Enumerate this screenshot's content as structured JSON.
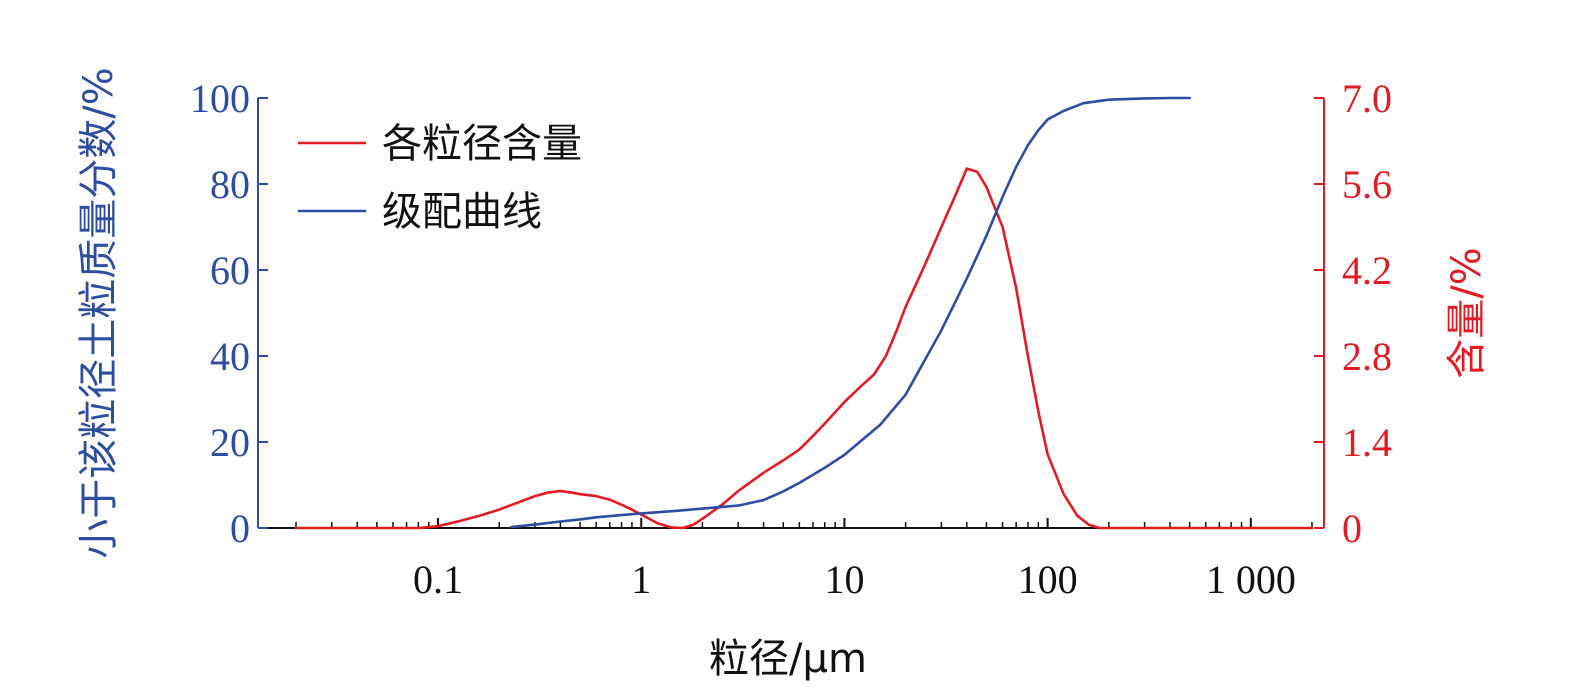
{
  "chart_data": {
    "type": "line",
    "xlabel": "粒径/μm",
    "x_scale": "log",
    "xlim": [
      0.013,
      2000
    ],
    "x_ticks": [
      {
        "value": 0.1,
        "label": "0.1"
      },
      {
        "value": 1,
        "label": "1"
      },
      {
        "value": 10,
        "label": "10"
      },
      {
        "value": 100,
        "label": "100"
      },
      {
        "value": 1000,
        "label": "1 000"
      }
    ],
    "y_left": {
      "label": "小于该粒径土粒质量分数/%",
      "ylim": [
        0,
        100
      ],
      "ticks": [
        "0",
        "20",
        "40",
        "60",
        "80",
        "100"
      ],
      "color": "#2e4da0"
    },
    "y_right": {
      "label": "含量/%",
      "ylim": [
        0,
        7.0
      ],
      "ticks": [
        "0",
        "1.4",
        "2.8",
        "4.2",
        "5.6",
        "7.0"
      ],
      "color": "#e01b24"
    },
    "legend": {
      "placement": "top-left",
      "entries": [
        {
          "name": "各粒径含量",
          "color": "#e01b24"
        },
        {
          "name": "级配曲线",
          "color": "#2e4da0"
        }
      ]
    },
    "grid": false,
    "series": [
      {
        "name": "各粒径含量",
        "axis": "right",
        "color": "#e01b24",
        "x": [
          0.02,
          0.04,
          0.06,
          0.08,
          0.1,
          0.13,
          0.16,
          0.2,
          0.25,
          0.3,
          0.35,
          0.4,
          0.45,
          0.5,
          0.6,
          0.7,
          0.8,
          0.9,
          1.0,
          1.2,
          1.4,
          1.6,
          1.8,
          2.0,
          2.5,
          3.0,
          4.0,
          5.0,
          6.0,
          7.0,
          8.0,
          10,
          12,
          14,
          16,
          18,
          20,
          25,
          30,
          35,
          40,
          45,
          50,
          60,
          70,
          80,
          90,
          100,
          120,
          140,
          160,
          180,
          200,
          300,
          500,
          1000,
          2000
        ],
        "y": [
          0,
          0,
          0,
          0,
          0.03,
          0.12,
          0.2,
          0.3,
          0.42,
          0.52,
          0.58,
          0.6,
          0.58,
          0.55,
          0.52,
          0.46,
          0.38,
          0.3,
          0.22,
          0.08,
          0.01,
          0.0,
          0.05,
          0.15,
          0.38,
          0.6,
          0.9,
          1.1,
          1.28,
          1.5,
          1.7,
          2.05,
          2.3,
          2.5,
          2.8,
          3.2,
          3.6,
          4.3,
          4.9,
          5.4,
          5.85,
          5.8,
          5.55,
          4.9,
          3.9,
          2.8,
          1.9,
          1.2,
          0.55,
          0.2,
          0.05,
          0,
          0,
          0,
          0,
          0,
          0
        ]
      },
      {
        "name": "级配曲线",
        "axis": "left",
        "color": "#2e4da0",
        "x": [
          0.23,
          0.3,
          0.4,
          0.5,
          0.6,
          0.8,
          1.0,
          1.5,
          2.0,
          3.0,
          4.0,
          5.0,
          6.0,
          8.0,
          10,
          15,
          20,
          30,
          40,
          50,
          60,
          70,
          80,
          90,
          100,
          120,
          150,
          200,
          300,
          400,
          500
        ],
        "y": [
          0.2,
          0.8,
          1.5,
          2.0,
          2.5,
          3.0,
          3.4,
          4.0,
          4.5,
          5.2,
          6.5,
          8.5,
          10.5,
          14,
          17,
          24,
          31,
          46,
          58,
          68,
          77,
          84,
          89,
          92.5,
          95,
          97,
          98.8,
          99.6,
          99.9,
          100,
          100
        ]
      }
    ]
  }
}
